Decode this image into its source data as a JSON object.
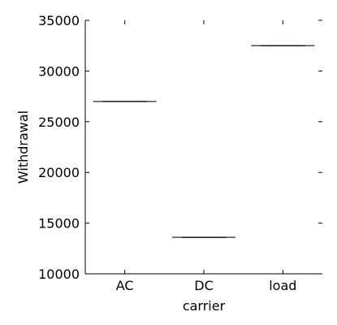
{
  "chart_data": {
    "type": "boxplot",
    "categories": [
      "AC",
      "DC",
      "load"
    ],
    "values": [
      27000,
      13600,
      32500
    ],
    "title": "",
    "xlabel": "carrier",
    "ylabel": "Withdrawal",
    "ylim": [
      10000,
      35000
    ],
    "yticks": [
      10000,
      15000,
      20000,
      25000,
      30000,
      35000
    ],
    "ytick_labels": [
      "10000",
      "15000",
      "20000",
      "25000",
      "30000",
      "35000"
    ],
    "grid": false,
    "colors": {
      "axis": "#000000",
      "median": "#000000",
      "box": "#4c4c4c"
    }
  }
}
